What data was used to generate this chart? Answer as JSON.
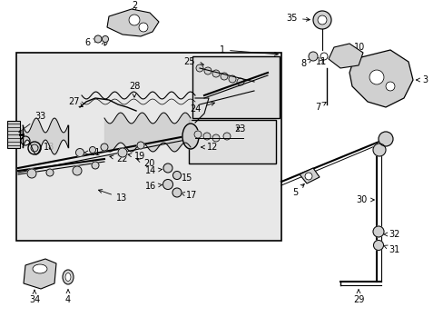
{
  "bg_color": "#ffffff",
  "line_color": "#000000",
  "gray_fill": "#d0d0d0",
  "light_gray": "#e8e8e8",
  "figsize": [
    4.89,
    3.6
  ],
  "dpi": 100,
  "fontsize": 7.0
}
